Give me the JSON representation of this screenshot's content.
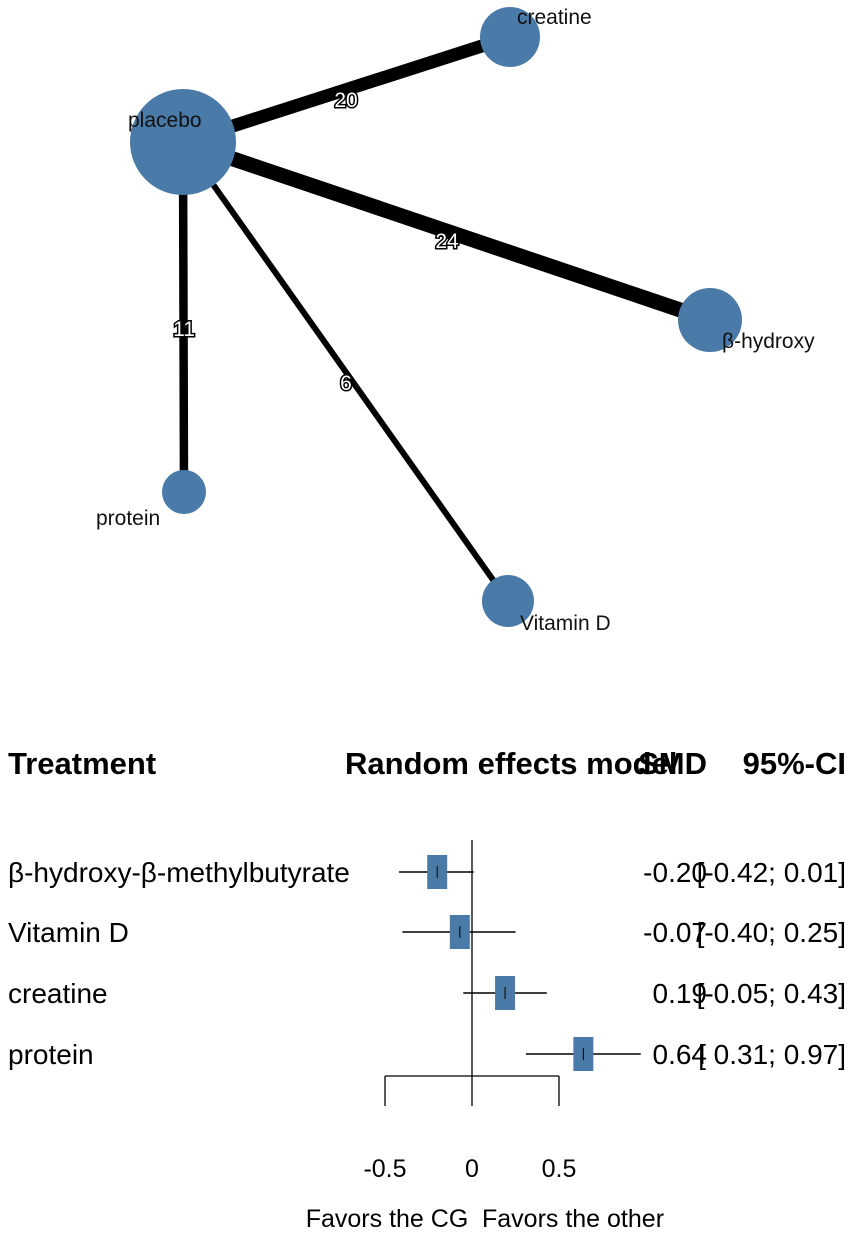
{
  "chart_data": [
    {
      "type": "network",
      "nodes": [
        {
          "name": "placebo"
        },
        {
          "name": "creatine"
        },
        {
          "name": "β-hydroxy"
        },
        {
          "name": "protein"
        },
        {
          "name": "Vitamin D"
        }
      ],
      "edges": [
        {
          "from": "placebo",
          "to": "creatine",
          "studies": 20,
          "label": "20"
        },
        {
          "from": "placebo",
          "to": "β-hydroxy",
          "studies": 24,
          "label": "24"
        },
        {
          "from": "placebo",
          "to": "protein",
          "studies": 11,
          "label": "11"
        },
        {
          "from": "placebo",
          "to": "Vitamin D",
          "studies": 6,
          "label": "6"
        }
      ],
      "node_color": "#4a7aa7",
      "edge_color": "#000000"
    },
    {
      "type": "forest",
      "headers": {
        "treatment": "Treatment",
        "model": "Random effects model",
        "smd": "SMD",
        "ci": "95%-CI"
      },
      "rows": [
        {
          "treatment": "β-hydroxy-β-methylbutyrate",
          "smd": -0.2,
          "lower": -0.42,
          "upper": 0.01,
          "smd_text": "-0.20",
          "ci_text": "[-0.42; 0.01]"
        },
        {
          "treatment": "Vitamin D",
          "smd": -0.07,
          "lower": -0.4,
          "upper": 0.25,
          "smd_text": "-0.07",
          "ci_text": "[-0.40; 0.25]"
        },
        {
          "treatment": "creatine",
          "smd": 0.19,
          "lower": -0.05,
          "upper": 0.43,
          "smd_text": "0.19",
          "ci_text": "[-0.05; 0.43]"
        },
        {
          "treatment": "protein",
          "smd": 0.64,
          "lower": 0.31,
          "upper": 0.97,
          "smd_text": "0.64",
          "ci_text": "[ 0.31; 0.97]"
        }
      ],
      "x_ticks": [
        -0.5,
        0,
        0.5
      ],
      "x_tick_labels": [
        "-0.5",
        "0",
        "0.5"
      ],
      "xlim": [
        -0.5,
        0.5
      ],
      "reference_line": 0,
      "left_label": "Favors the CG",
      "right_label": "Favors the other",
      "marker_color": "#4a7aa7"
    }
  ]
}
